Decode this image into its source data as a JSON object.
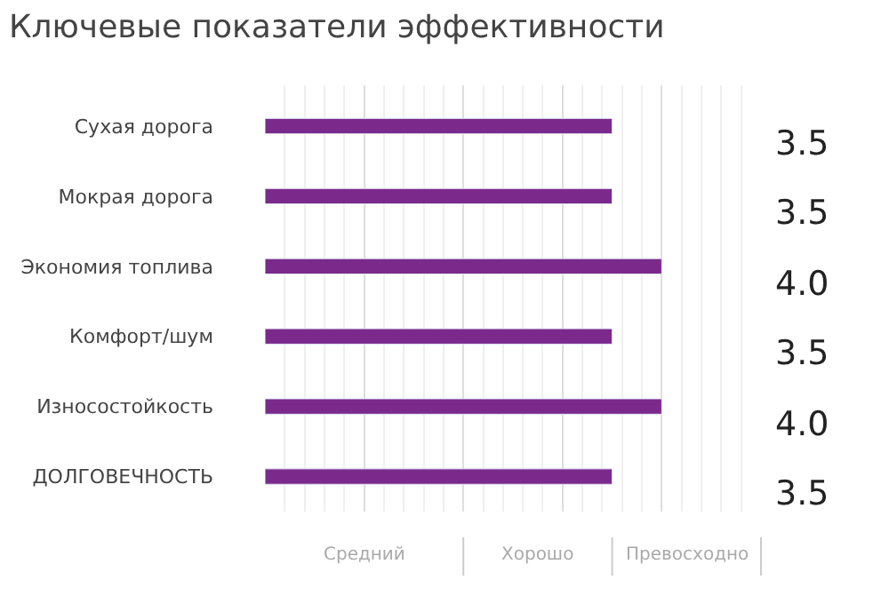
{
  "chart_data": {
    "type": "bar",
    "orientation": "horizontal",
    "title": "Ключевые показатели эффективности",
    "categories": [
      "Сухая дорога",
      "Мокрая дорога",
      "Экономия топлива",
      "Комфорт/шум",
      "Износостойкость",
      "ДОЛГОВЕЧНОСТЬ"
    ],
    "values": [
      3.5,
      3.5,
      4.0,
      3.5,
      4.0,
      3.5
    ],
    "value_labels": [
      "3.5",
      "3.5",
      "4.0",
      "3.5",
      "4.0",
      "3.5"
    ],
    "color": "#7b2a8c",
    "annotations": [
      "Средний",
      "Хорошо",
      "Превосходно"
    ],
    "grid": "x",
    "legend": false
  }
}
